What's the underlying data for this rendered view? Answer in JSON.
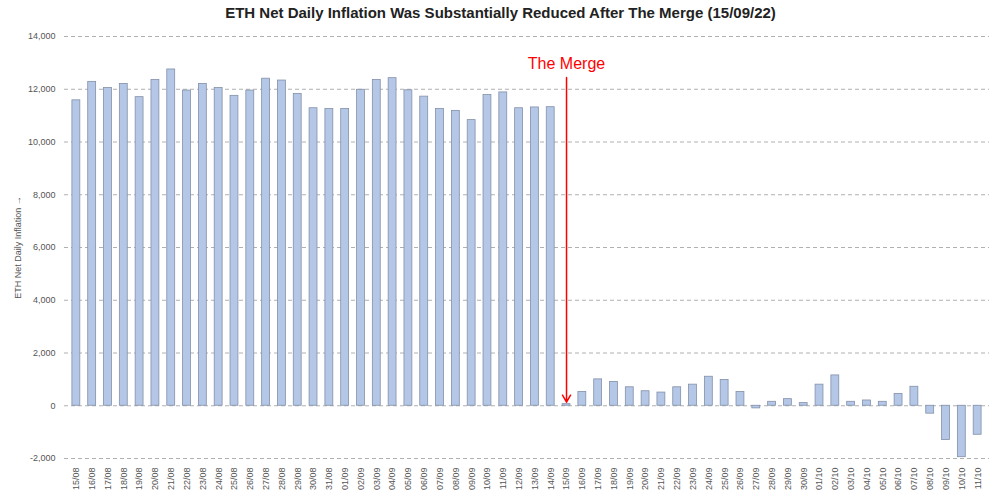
{
  "chart_data": {
    "type": "bar",
    "title": "ETH Net Daily Inflation Was Substantially Reduced After The Merge (15/09/22)",
    "y_label": "ETH Net Daily Inflation",
    "categories": [
      "15/08",
      "16/08",
      "17/08",
      "18/08",
      "19/08",
      "20/08",
      "21/08",
      "22/08",
      "23/08",
      "24/08",
      "25/08",
      "26/08",
      "27/08",
      "28/08",
      "29/08",
      "30/08",
      "31/08",
      "01/09",
      "02/09",
      "03/09",
      "04/09",
      "05/09",
      "06/09",
      "07/09",
      "08/09",
      "09/09",
      "10/09",
      "11/09",
      "12/09",
      "13/09",
      "14/09",
      "15/09",
      "16/09",
      "17/09",
      "18/09",
      "19/09",
      "20/09",
      "21/09",
      "22/09",
      "23/09",
      "24/09",
      "25/09",
      "26/09",
      "27/09",
      "28/09",
      "29/09",
      "30/09",
      "01/10",
      "02/10",
      "03/10",
      "04/10",
      "05/10",
      "06/10",
      "07/10",
      "08/10",
      "09/10",
      "10/10",
      "11/10"
    ],
    "values": [
      11580,
      12280,
      12050,
      12200,
      11700,
      12350,
      12750,
      11950,
      12200,
      12050,
      11750,
      11950,
      12400,
      12330,
      11820,
      11280,
      11250,
      11250,
      11980,
      12350,
      12420,
      11960,
      11720,
      11250,
      11180,
      10830,
      11780,
      11880,
      11280,
      11310,
      11320,
      60,
      520,
      1000,
      900,
      700,
      550,
      500,
      700,
      800,
      1100,
      980,
      520,
      -100,
      150,
      250,
      100,
      800,
      1150,
      150,
      200,
      150,
      450,
      720,
      -300,
      -1300,
      -1950,
      -1100
    ],
    "color": "#b4c7e7",
    "ylim": [
      -2000,
      14000
    ],
    "yticks": [
      {
        "value": -2000,
        "label": "-2,000"
      },
      0,
      {
        "value": 2000,
        "label": "2,000"
      },
      {
        "value": 4000,
        "label": "4,000"
      },
      {
        "value": 6000,
        "label": "6,000"
      },
      {
        "value": 8000,
        "label": "8,000"
      },
      {
        "value": 10000,
        "label": "10,000"
      },
      {
        "value": 12000,
        "label": "12,000"
      },
      {
        "value": 14000,
        "label": "14,000"
      }
    ],
    "grid": true,
    "annotations": [
      {
        "text": "The Merge",
        "x": "15/09",
        "y": 12900,
        "color": "#ff0000"
      }
    ]
  }
}
